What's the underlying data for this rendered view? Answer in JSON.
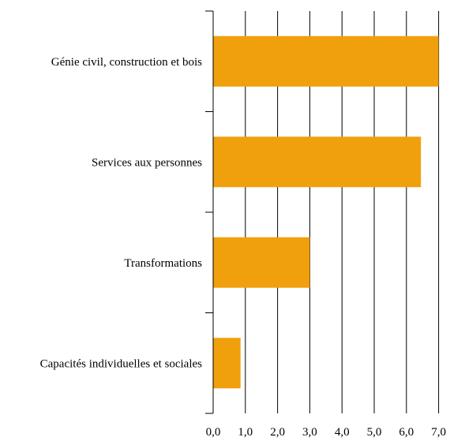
{
  "chart_data": {
    "type": "bar",
    "orientation": "horizontal",
    "categories": [
      "Génie civil, construction et bois",
      "Services aux personnes",
      "Transformations",
      "Capacités individuelles et sociales"
    ],
    "values": [
      7.0,
      6.45,
      3.0,
      0.85
    ],
    "xlim": [
      0,
      7
    ],
    "xticks": [
      "0,0",
      "1,0",
      "2,0",
      "3,0",
      "4,0",
      "5,0",
      "6,0",
      "7,0"
    ],
    "grid": "vertical",
    "bar_color": "#F0A00C",
    "title": "",
    "xlabel": "",
    "ylabel": ""
  }
}
